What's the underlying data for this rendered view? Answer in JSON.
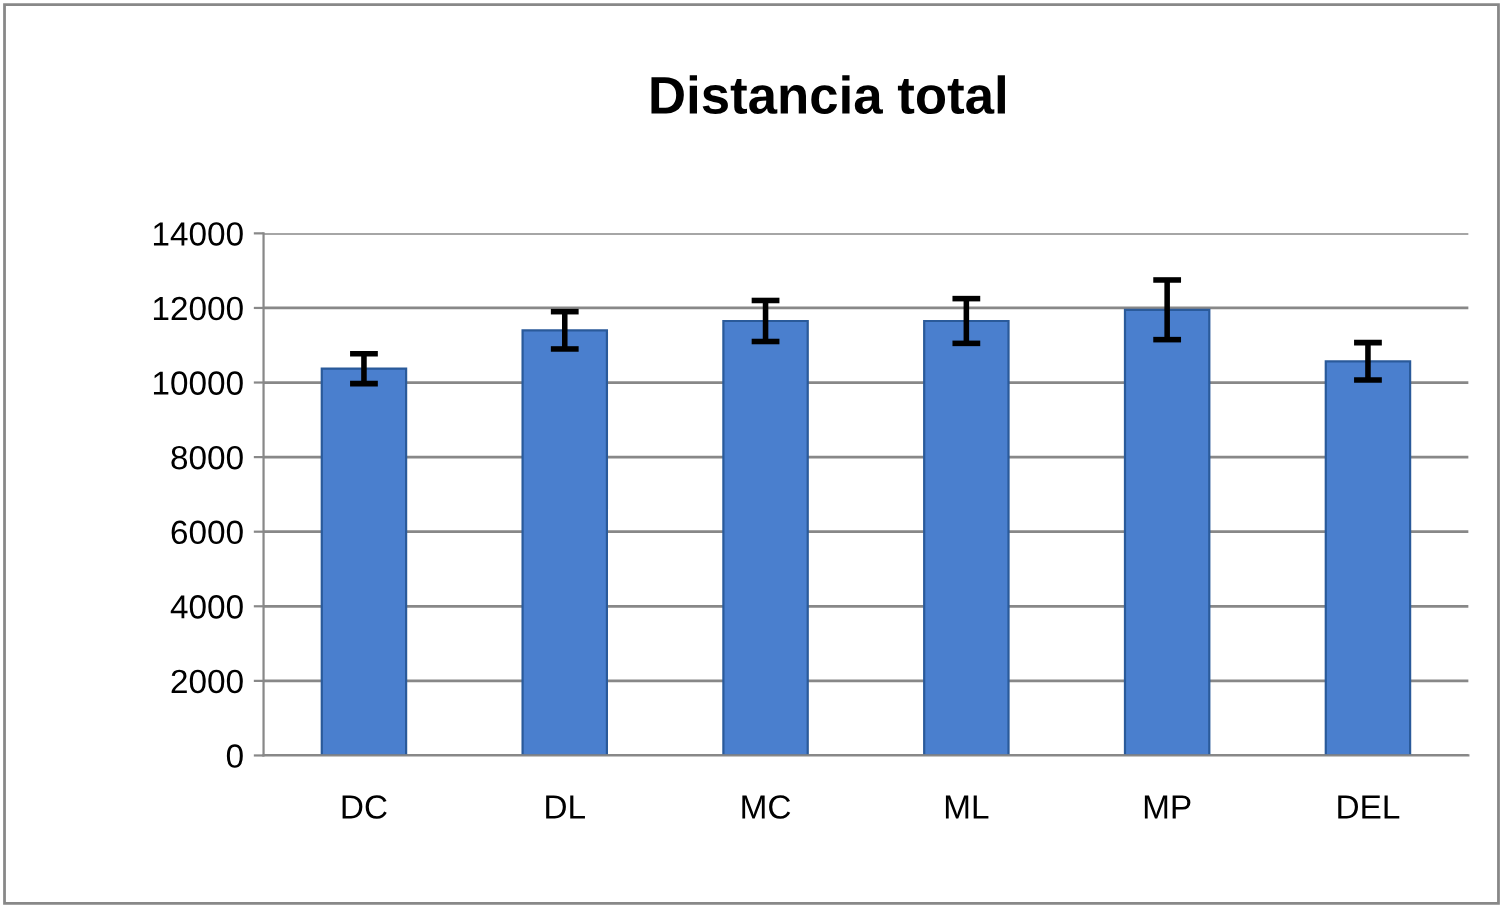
{
  "chart_data": {
    "type": "bar",
    "title": "Distancia total",
    "categories": [
      "DC",
      "DL",
      "MC",
      "ML",
      "MP",
      "DEL"
    ],
    "values": [
      10370,
      11400,
      11650,
      11650,
      11950,
      10570
    ],
    "errors": [
      400,
      500,
      550,
      600,
      800,
      500
    ],
    "color": "#4a7fce",
    "ylim": [
      0,
      14000
    ],
    "yticks": [
      0,
      2000,
      4000,
      6000,
      8000,
      10000,
      12000,
      14000
    ],
    "grid": "y"
  }
}
